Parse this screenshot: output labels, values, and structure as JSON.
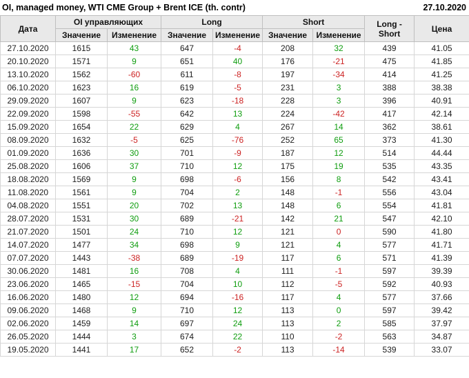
{
  "header": {
    "title": "OI, managed money, WTI CME Group + Brent ICE (th. contr)",
    "report_date": "27.10.2020"
  },
  "table": {
    "columns": {
      "date": "Дата",
      "oi_group": "OI управляющих",
      "long_group": "Long",
      "short_group": "Short",
      "value": "Значение",
      "change": "Изменение",
      "long_short": "Long - Short",
      "price": "Цена"
    },
    "rows": [
      {
        "date": "27.10.2020",
        "oi": "1615",
        "oi_chg": "43",
        "oi_dir": "pos",
        "long": "647",
        "long_chg": "-4",
        "long_dir": "neg",
        "short": "208",
        "short_chg": "32",
        "short_dir": "pos",
        "ls": "439",
        "price": "41.05"
      },
      {
        "date": "20.10.2020",
        "oi": "1571",
        "oi_chg": "9",
        "oi_dir": "pos",
        "long": "651",
        "long_chg": "40",
        "long_dir": "pos",
        "short": "176",
        "short_chg": "-21",
        "short_dir": "neg",
        "ls": "475",
        "price": "41.85"
      },
      {
        "date": "13.10.2020",
        "oi": "1562",
        "oi_chg": "-60",
        "oi_dir": "neg",
        "long": "611",
        "long_chg": "-8",
        "long_dir": "neg",
        "short": "197",
        "short_chg": "-34",
        "short_dir": "neg",
        "ls": "414",
        "price": "41.25"
      },
      {
        "date": "06.10.2020",
        "oi": "1623",
        "oi_chg": "16",
        "oi_dir": "pos",
        "long": "619",
        "long_chg": "-5",
        "long_dir": "neg",
        "short": "231",
        "short_chg": "3",
        "short_dir": "pos",
        "ls": "388",
        "price": "38.38"
      },
      {
        "date": "29.09.2020",
        "oi": "1607",
        "oi_chg": "9",
        "oi_dir": "pos",
        "long": "623",
        "long_chg": "-18",
        "long_dir": "neg",
        "short": "228",
        "short_chg": "3",
        "short_dir": "pos",
        "ls": "396",
        "price": "40.91"
      },
      {
        "date": "22.09.2020",
        "oi": "1598",
        "oi_chg": "-55",
        "oi_dir": "neg",
        "long": "642",
        "long_chg": "13",
        "long_dir": "pos",
        "short": "224",
        "short_chg": "-42",
        "short_dir": "neg",
        "ls": "417",
        "price": "42.14"
      },
      {
        "date": "15.09.2020",
        "oi": "1654",
        "oi_chg": "22",
        "oi_dir": "pos",
        "long": "629",
        "long_chg": "4",
        "long_dir": "pos",
        "short": "267",
        "short_chg": "14",
        "short_dir": "pos",
        "ls": "362",
        "price": "38.61"
      },
      {
        "date": "08.09.2020",
        "oi": "1632",
        "oi_chg": "-5",
        "oi_dir": "neg",
        "long": "625",
        "long_chg": "-76",
        "long_dir": "neg",
        "short": "252",
        "short_chg": "65",
        "short_dir": "pos",
        "ls": "373",
        "price": "41.30"
      },
      {
        "date": "01.09.2020",
        "oi": "1636",
        "oi_chg": "30",
        "oi_dir": "pos",
        "long": "701",
        "long_chg": "-9",
        "long_dir": "neg",
        "short": "187",
        "short_chg": "12",
        "short_dir": "pos",
        "ls": "514",
        "price": "44.44"
      },
      {
        "date": "25.08.2020",
        "oi": "1606",
        "oi_chg": "37",
        "oi_dir": "pos",
        "long": "710",
        "long_chg": "12",
        "long_dir": "pos",
        "short": "175",
        "short_chg": "19",
        "short_dir": "pos",
        "ls": "535",
        "price": "43.35"
      },
      {
        "date": "18.08.2020",
        "oi": "1569",
        "oi_chg": "9",
        "oi_dir": "pos",
        "long": "698",
        "long_chg": "-6",
        "long_dir": "neg",
        "short": "156",
        "short_chg": "8",
        "short_dir": "pos",
        "ls": "542",
        "price": "43.41"
      },
      {
        "date": "11.08.2020",
        "oi": "1561",
        "oi_chg": "9",
        "oi_dir": "pos",
        "long": "704",
        "long_chg": "2",
        "long_dir": "pos",
        "short": "148",
        "short_chg": "-1",
        "short_dir": "neg",
        "ls": "556",
        "price": "43.04"
      },
      {
        "date": "04.08.2020",
        "oi": "1551",
        "oi_chg": "20",
        "oi_dir": "pos",
        "long": "702",
        "long_chg": "13",
        "long_dir": "pos",
        "short": "148",
        "short_chg": "6",
        "short_dir": "pos",
        "ls": "554",
        "price": "41.81"
      },
      {
        "date": "28.07.2020",
        "oi": "1531",
        "oi_chg": "30",
        "oi_dir": "pos",
        "long": "689",
        "long_chg": "-21",
        "long_dir": "neg",
        "short": "142",
        "short_chg": "21",
        "short_dir": "pos",
        "ls": "547",
        "price": "42.10"
      },
      {
        "date": "21.07.2020",
        "oi": "1501",
        "oi_chg": "24",
        "oi_dir": "pos",
        "long": "710",
        "long_chg": "12",
        "long_dir": "pos",
        "short": "121",
        "short_chg": "0",
        "short_dir": "neg",
        "ls": "590",
        "price": "41.80"
      },
      {
        "date": "14.07.2020",
        "oi": "1477",
        "oi_chg": "34",
        "oi_dir": "pos",
        "long": "698",
        "long_chg": "9",
        "long_dir": "pos",
        "short": "121",
        "short_chg": "4",
        "short_dir": "pos",
        "ls": "577",
        "price": "41.71"
      },
      {
        "date": "07.07.2020",
        "oi": "1443",
        "oi_chg": "-38",
        "oi_dir": "neg",
        "long": "689",
        "long_chg": "-19",
        "long_dir": "neg",
        "short": "117",
        "short_chg": "6",
        "short_dir": "pos",
        "ls": "571",
        "price": "41.39"
      },
      {
        "date": "30.06.2020",
        "oi": "1481",
        "oi_chg": "16",
        "oi_dir": "pos",
        "long": "708",
        "long_chg": "4",
        "long_dir": "pos",
        "short": "111",
        "short_chg": "-1",
        "short_dir": "neg",
        "ls": "597",
        "price": "39.39"
      },
      {
        "date": "23.06.2020",
        "oi": "1465",
        "oi_chg": "-15",
        "oi_dir": "neg",
        "long": "704",
        "long_chg": "10",
        "long_dir": "pos",
        "short": "112",
        "short_chg": "-5",
        "short_dir": "neg",
        "ls": "592",
        "price": "40.93"
      },
      {
        "date": "16.06.2020",
        "oi": "1480",
        "oi_chg": "12",
        "oi_dir": "pos",
        "long": "694",
        "long_chg": "-16",
        "long_dir": "neg",
        "short": "117",
        "short_chg": "4",
        "short_dir": "pos",
        "ls": "577",
        "price": "37.66"
      },
      {
        "date": "09.06.2020",
        "oi": "1468",
        "oi_chg": "9",
        "oi_dir": "pos",
        "long": "710",
        "long_chg": "12",
        "long_dir": "pos",
        "short": "113",
        "short_chg": "0",
        "short_dir": "pos",
        "ls": "597",
        "price": "39.42"
      },
      {
        "date": "02.06.2020",
        "oi": "1459",
        "oi_chg": "14",
        "oi_dir": "pos",
        "long": "697",
        "long_chg": "24",
        "long_dir": "pos",
        "short": "113",
        "short_chg": "2",
        "short_dir": "pos",
        "ls": "585",
        "price": "37.97"
      },
      {
        "date": "26.05.2020",
        "oi": "1444",
        "oi_chg": "3",
        "oi_dir": "pos",
        "long": "674",
        "long_chg": "22",
        "long_dir": "pos",
        "short": "110",
        "short_chg": "-2",
        "short_dir": "neg",
        "ls": "563",
        "price": "34.87"
      },
      {
        "date": "19.05.2020",
        "oi": "1441",
        "oi_chg": "17",
        "oi_dir": "pos",
        "long": "652",
        "long_chg": "-2",
        "long_dir": "neg",
        "short": "113",
        "short_chg": "-14",
        "short_dir": "neg",
        "ls": "539",
        "price": "33.07"
      }
    ]
  },
  "colors": {
    "positive_change": "#0f9d0f",
    "negative_change": "#cc2222",
    "header_bg": "#e9e9e9"
  }
}
